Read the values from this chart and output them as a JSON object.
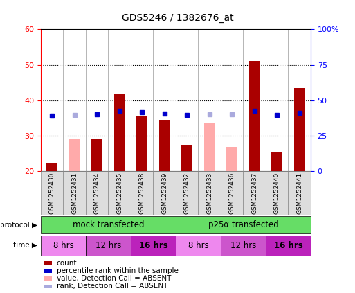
{
  "title": "GDS5246 / 1382676_at",
  "samples": [
    "GSM1252430",
    "GSM1252431",
    "GSM1252434",
    "GSM1252435",
    "GSM1252438",
    "GSM1252439",
    "GSM1252432",
    "GSM1252433",
    "GSM1252436",
    "GSM1252437",
    "GSM1252440",
    "GSM1252441"
  ],
  "count_values": [
    22.5,
    null,
    29.0,
    42.0,
    35.5,
    34.5,
    27.5,
    null,
    null,
    51.0,
    25.5,
    43.5
  ],
  "count_absent": [
    null,
    29.0,
    null,
    null,
    null,
    null,
    null,
    33.5,
    27.0,
    null,
    null,
    null
  ],
  "rank_values": [
    39.0,
    null,
    40.0,
    42.5,
    41.5,
    40.5,
    39.5,
    null,
    null,
    42.5,
    39.5,
    41.0
  ],
  "rank_absent": [
    null,
    39.5,
    null,
    null,
    null,
    null,
    null,
    40.0,
    40.0,
    null,
    null,
    null
  ],
  "ylim_left": [
    20,
    60
  ],
  "ylim_right": [
    0,
    100
  ],
  "yticks_left": [
    20,
    30,
    40,
    50,
    60
  ],
  "yticks_right": [
    0,
    25,
    50,
    75,
    100
  ],
  "ytick_labels_right": [
    "0",
    "25",
    "50",
    "75",
    "100%"
  ],
  "bar_color": "#aa0000",
  "bar_absent_color": "#ffaaaa",
  "rank_color": "#0000cc",
  "rank_absent_color": "#aaaadd",
  "bg_color": "#ffffff",
  "protocol_color": "#66dd66",
  "time_colors": [
    "#ee88ee",
    "#cc55cc",
    "#bb22bb"
  ],
  "protocol_labels": [
    "mock transfected",
    "p25α transfected"
  ],
  "time_labels": [
    "8 hrs",
    "12 hrs",
    "16 hrs",
    "8 hrs",
    "12 hrs",
    "16 hrs"
  ],
  "legend_items": [
    {
      "label": "count",
      "color": "#aa0000"
    },
    {
      "label": "percentile rank within the sample",
      "color": "#0000cc"
    },
    {
      "label": "value, Detection Call = ABSENT",
      "color": "#ffaaaa"
    },
    {
      "label": "rank, Detection Call = ABSENT",
      "color": "#aaaadd"
    }
  ]
}
